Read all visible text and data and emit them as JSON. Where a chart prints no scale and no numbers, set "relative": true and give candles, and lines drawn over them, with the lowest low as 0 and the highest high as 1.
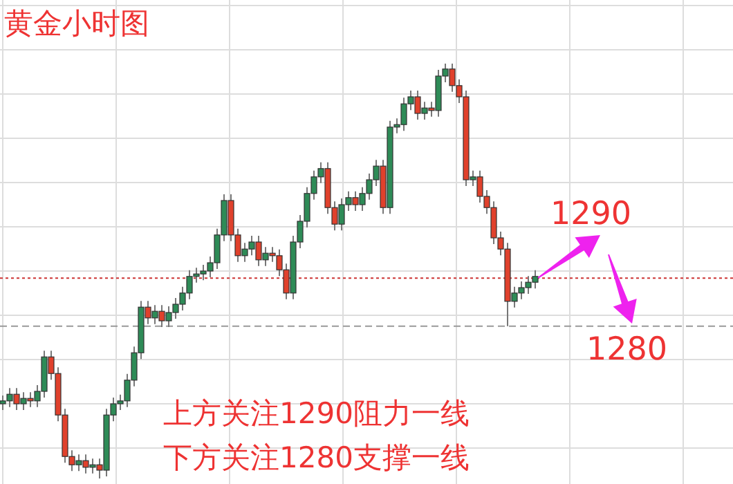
{
  "chart_data": {
    "type": "candlestick",
    "title": "黄金小时图",
    "relative": true,
    "grid": true,
    "annotations": [
      "1290",
      "1280",
      "上方关注1290阻力一线",
      "下方关注1280支撑一线"
    ],
    "ref_lines": [
      {
        "axis": "y",
        "value": 0.483,
        "color": "#cc3333",
        "line_style": "dotted"
      },
      {
        "axis": "y",
        "value": 0.367,
        "color": "#999999",
        "line_style": "dashed"
      }
    ],
    "colors": [
      "#2e8b57",
      "#2e8b57",
      "#e0412c",
      "#2e8b57",
      "#e0412c",
      "#2e8b57",
      "#2e8b57",
      "#e0412c",
      "#e0412c",
      "#e0412c",
      "#e0412c",
      "#2e8b57",
      "#e0412c",
      "#2e8b57",
      "#e0412c",
      "#2e8b57",
      "#2e8b57",
      "#2e8b57",
      "#2e8b57",
      "#2e8b57",
      "#2e8b57",
      "#e0412c",
      "#2e8b57",
      "#e0412c",
      "#2e8b57",
      "#2e8b57",
      "#2e8b57",
      "#2e8b57",
      "#2e8b57",
      "#2e8b57",
      "#2e8b57",
      "#2e8b57",
      "#2e8b57",
      "#e0412c",
      "#e0412c",
      "#2e8b57",
      "#2e8b57",
      "#e0412c",
      "#2e8b57",
      "#e0412c",
      "#e0412c",
      "#e0412c",
      "#2e8b57",
      "#2e8b57",
      "#2e8b57",
      "#2e8b57",
      "#2e8b57",
      "#e0412c",
      "#e0412c",
      "#2e8b57",
      "#2e8b57",
      "#e0412c",
      "#2e8b57",
      "#2e8b57",
      "#2e8b57",
      "#e0412c",
      "#2e8b57",
      "#2e8b57",
      "#2e8b57",
      "#2e8b57",
      "#e0412c",
      "#2e8b57",
      "#e0412c",
      "#2e8b57",
      "#2e8b57",
      "#e0412c",
      "#e0412c",
      "#e0412c",
      "#2e8b57",
      "#e0412c",
      "#e0412c",
      "#e0412c",
      "#e0412c",
      "#e0412c",
      "#2e8b57",
      "#2e8b57",
      "#2e8b57",
      "#2e8b57"
    ],
    "categories": [
      null,
      null,
      null,
      null,
      null,
      null,
      null,
      null,
      null,
      null,
      null,
      null,
      null,
      null,
      null,
      null,
      null,
      null,
      null,
      null,
      null,
      null,
      null,
      null,
      null,
      null,
      null,
      null,
      null,
      null,
      null,
      null,
      null,
      null,
      null,
      null,
      null,
      null,
      null,
      null,
      null,
      null,
      null,
      null,
      null,
      null,
      null,
      null,
      null,
      null,
      null,
      null,
      null,
      null,
      null,
      null,
      null,
      null,
      null,
      null,
      null,
      null,
      null,
      null,
      null,
      null,
      null,
      null,
      null,
      null,
      null,
      null,
      null,
      null,
      null,
      null,
      null,
      null
    ],
    "ohlc": [
      [
        0.18,
        0.2,
        0.165,
        0.187
      ],
      [
        0.187,
        0.218,
        0.172,
        0.203
      ],
      [
        0.203,
        0.218,
        0.165,
        0.18
      ],
      [
        0.18,
        0.208,
        0.165,
        0.193
      ],
      [
        0.193,
        0.208,
        0.172,
        0.187
      ],
      [
        0.187,
        0.225,
        0.172,
        0.21
      ],
      [
        0.21,
        0.308,
        0.195,
        0.293
      ],
      [
        0.293,
        0.308,
        0.238,
        0.253
      ],
      [
        0.253,
        0.268,
        0.138,
        0.153
      ],
      [
        0.153,
        0.168,
        0.038,
        0.053
      ],
      [
        0.053,
        0.068,
        0.018,
        0.033
      ],
      [
        0.033,
        0.058,
        0.018,
        0.043
      ],
      [
        0.043,
        0.058,
        0.012,
        0.027
      ],
      [
        0.027,
        0.048,
        0.012,
        0.033
      ],
      [
        0.033,
        0.048,
        0,
        0.02
      ],
      [
        0.02,
        0.168,
        0.005,
        0.153
      ],
      [
        0.153,
        0.195,
        0.138,
        0.18
      ],
      [
        0.18,
        0.202,
        0.165,
        0.187
      ],
      [
        0.187,
        0.252,
        0.172,
        0.237
      ],
      [
        0.237,
        0.318,
        0.222,
        0.303
      ],
      [
        0.303,
        0.428,
        0.288,
        0.413
      ],
      [
        0.413,
        0.428,
        0.372,
        0.387
      ],
      [
        0.387,
        0.418,
        0.372,
        0.403
      ],
      [
        0.403,
        0.418,
        0.365,
        0.38
      ],
      [
        0.38,
        0.415,
        0.365,
        0.4
      ],
      [
        0.4,
        0.435,
        0.385,
        0.42
      ],
      [
        0.42,
        0.462,
        0.405,
        0.447
      ],
      [
        0.447,
        0.502,
        0.432,
        0.487
      ],
      [
        0.487,
        0.508,
        0.472,
        0.493
      ],
      [
        0.493,
        0.515,
        0.478,
        0.5
      ],
      [
        0.5,
        0.535,
        0.485,
        0.52
      ],
      [
        0.52,
        0.602,
        0.505,
        0.587
      ],
      [
        0.587,
        0.685,
        0.572,
        0.67
      ],
      [
        0.67,
        0.685,
        0.572,
        0.587
      ],
      [
        0.587,
        0.602,
        0.522,
        0.537
      ],
      [
        0.537,
        0.568,
        0.522,
        0.553
      ],
      [
        0.553,
        0.585,
        0.538,
        0.57
      ],
      [
        0.57,
        0.585,
        0.512,
        0.527
      ],
      [
        0.527,
        0.558,
        0.512,
        0.543
      ],
      [
        0.543,
        0.558,
        0.522,
        0.537
      ],
      [
        0.537,
        0.552,
        0.488,
        0.503
      ],
      [
        0.503,
        0.518,
        0.432,
        0.447
      ],
      [
        0.447,
        0.585,
        0.432,
        0.57
      ],
      [
        0.57,
        0.635,
        0.555,
        0.62
      ],
      [
        0.62,
        0.702,
        0.605,
        0.687
      ],
      [
        0.687,
        0.742,
        0.672,
        0.727
      ],
      [
        0.727,
        0.762,
        0.712,
        0.747
      ],
      [
        0.747,
        0.762,
        0.638,
        0.653
      ],
      [
        0.653,
        0.668,
        0.598,
        0.613
      ],
      [
        0.613,
        0.675,
        0.598,
        0.66
      ],
      [
        0.66,
        0.692,
        0.645,
        0.677
      ],
      [
        0.677,
        0.692,
        0.645,
        0.66
      ],
      [
        0.66,
        0.702,
        0.645,
        0.687
      ],
      [
        0.687,
        0.735,
        0.672,
        0.72
      ],
      [
        0.72,
        0.768,
        0.705,
        0.753
      ],
      [
        0.753,
        0.768,
        0.638,
        0.653
      ],
      [
        0.653,
        0.862,
        0.638,
        0.847
      ],
      [
        0.847,
        0.868,
        0.832,
        0.853
      ],
      [
        0.853,
        0.918,
        0.838,
        0.903
      ],
      [
        0.903,
        0.935,
        0.888,
        0.92
      ],
      [
        0.92,
        0.935,
        0.865,
        0.88
      ],
      [
        0.88,
        0.908,
        0.865,
        0.893
      ],
      [
        0.893,
        0.908,
        0.872,
        0.887
      ],
      [
        0.887,
        0.985,
        0.872,
        0.97
      ],
      [
        0.97,
        1,
        0.955,
        0.987
      ],
      [
        0.987,
        1,
        0.932,
        0.947
      ],
      [
        0.947,
        0.962,
        0.905,
        0.92
      ],
      [
        0.92,
        0.935,
        0.705,
        0.72
      ],
      [
        0.72,
        0.742,
        0.705,
        0.727
      ],
      [
        0.727,
        0.742,
        0.665,
        0.68
      ],
      [
        0.68,
        0.695,
        0.638,
        0.653
      ],
      [
        0.653,
        0.668,
        0.565,
        0.58
      ],
      [
        0.58,
        0.595,
        0.538,
        0.553
      ],
      [
        0.553,
        0.568,
        0.367,
        0.427
      ],
      [
        0.427,
        0.462,
        0.412,
        0.447
      ],
      [
        0.447,
        0.475,
        0.432,
        0.46
      ],
      [
        0.46,
        0.488,
        0.445,
        0.473
      ],
      [
        0.473,
        0.502,
        0.458,
        0.487
      ]
    ]
  }
}
